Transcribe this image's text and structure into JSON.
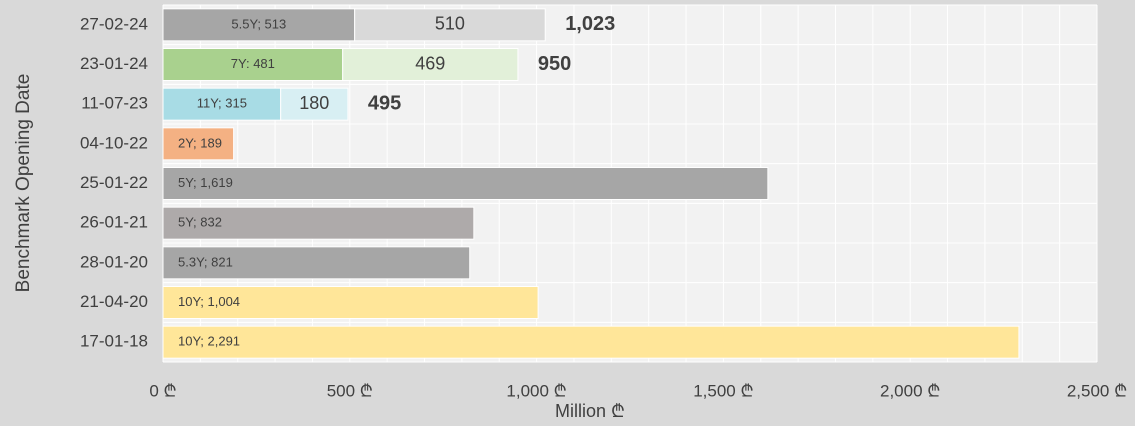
{
  "chart_data": {
    "type": "stacked_hbar",
    "y_axis_label": "Benchmark Opening Date",
    "x_axis_label": "Million ₾",
    "categories": [
      "27-02-24",
      "23-01-24",
      "11-07-23",
      "04-10-22",
      "25-01-22",
      "26-01-21",
      "28-01-20",
      "21-04-20",
      "17-01-18"
    ],
    "series": [
      {
        "values": [
          513,
          481,
          315,
          189,
          1619,
          832,
          821,
          1004,
          2291
        ],
        "value_labels": [
          "5.5Y; 513",
          "7Y: 481",
          "11Y; 315",
          "2Y; 189",
          "5Y; 1,619",
          "5Y; 832",
          "5.3Y; 821",
          "10Y; 1,004",
          "10Y; 2,291"
        ],
        "colors": [
          "#a6a6a6",
          "#a9d18e",
          "#a8dce5",
          "#f4b183",
          "#a6a6a6",
          "#aeaaaa",
          "#a6a6a6",
          "#ffe699",
          "#ffe699"
        ]
      },
      {
        "values": [
          510,
          469,
          180,
          null,
          null,
          null,
          null,
          null,
          null
        ],
        "colors": [
          "#d9d9d9",
          "#e2f0d9",
          "#d8eff3",
          null,
          null,
          null,
          null,
          null,
          null
        ]
      }
    ],
    "totals": [
      1023,
      950,
      495,
      null,
      null,
      null,
      null,
      null,
      null
    ],
    "total_labels": [
      "1,023",
      "950",
      "495",
      null,
      null,
      null,
      null,
      null,
      null
    ],
    "xlim": [
      0,
      2500
    ],
    "xticks": [
      {
        "value": 0,
        "label": "0 ₾"
      },
      {
        "value": 500,
        "label": "500 ₾"
      },
      {
        "value": 1000,
        "label": "1,000 ₾"
      },
      {
        "value": 1500,
        "label": "1,500 ₾"
      },
      {
        "value": 2000,
        "label": "2,000 ₾"
      },
      {
        "value": 2500,
        "label": "2,500 ₾"
      }
    ],
    "minor_xticks": [
      0,
      100,
      200,
      300,
      400,
      500,
      600,
      700,
      800,
      900,
      1000,
      1100,
      1200,
      1300,
      1400,
      1500,
      1600,
      1700,
      1800,
      1900,
      2000,
      2100,
      2200,
      2300,
      2400,
      2500
    ],
    "grid": true
  }
}
